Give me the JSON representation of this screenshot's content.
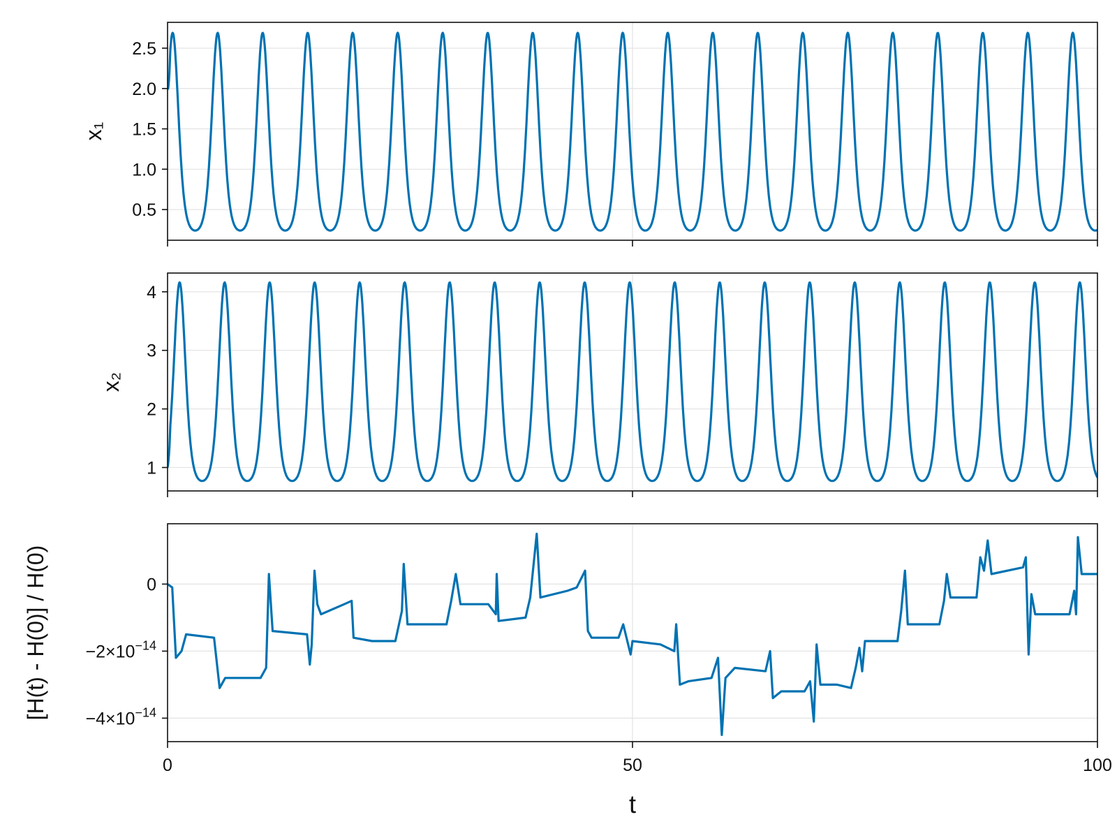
{
  "chart_data": [
    {
      "type": "line",
      "ylabel": "x₁",
      "xlim": [
        0,
        100
      ],
      "ylim": [
        0.12,
        2.82
      ],
      "grid": true,
      "xticks": [
        0,
        50,
        100
      ],
      "yticks": [
        0.5,
        1.0,
        1.5,
        2.0,
        2.5
      ],
      "ytick_labels": [
        "0.5",
        "1.0",
        "1.5",
        "2.0",
        "2.5"
      ],
      "series": [
        {
          "color": "#0072b2",
          "signal": {
            "kind": "periodic",
            "start_value": 2.0,
            "min": 0.24,
            "max": 2.69,
            "period": 4.84,
            "first_peak_t": 0.55
          }
        }
      ]
    },
    {
      "type": "line",
      "ylabel": "x₂",
      "xlim": [
        0,
        100
      ],
      "ylim": [
        0.6,
        4.32
      ],
      "grid": true,
      "xticks": [
        0,
        50,
        100
      ],
      "yticks": [
        1,
        2,
        3,
        4
      ],
      "ytick_labels": [
        "1",
        "2",
        "3",
        "4"
      ],
      "series": [
        {
          "color": "#0072b2",
          "signal": {
            "kind": "periodic",
            "start_value": 1.0,
            "min": 0.77,
            "max": 4.16,
            "period": 4.84,
            "first_peak_t": 1.3
          }
        }
      ]
    },
    {
      "type": "line",
      "ylabel": "[H(t) - H(0)] / H(0)",
      "xlabel": "t",
      "xlim": [
        0,
        100
      ],
      "ylim": [
        -4.7e-14,
        1.8e-14
      ],
      "grid": true,
      "xticks": [
        0,
        50,
        100
      ],
      "xtick_labels": [
        "0",
        "50",
        "100"
      ],
      "yticks": [
        -4e-14,
        -2e-14,
        0
      ],
      "ytick_labels": [
        {
          "mant": "−4×10",
          "exp": "−14"
        },
        {
          "mant": "−2×10",
          "exp": "−14"
        },
        {
          "mant": "0",
          "exp": ""
        }
      ],
      "series": [
        {
          "color": "#0072b2",
          "points": [
            [
              0,
              0
            ],
            [
              0.5,
              -0.1
            ],
            [
              0.9,
              -2.2
            ],
            [
              1.5,
              -2.0
            ],
            [
              2.0,
              -1.5
            ],
            [
              5.0,
              -1.6
            ],
            [
              5.6,
              -3.1
            ],
            [
              6.2,
              -2.8
            ],
            [
              10.0,
              -2.8
            ],
            [
              10.6,
              -2.5
            ],
            [
              10.9,
              0.3
            ],
            [
              11.3,
              -1.4
            ],
            [
              15.0,
              -1.5
            ],
            [
              15.3,
              -2.4
            ],
            [
              15.5,
              -1.8
            ],
            [
              15.8,
              0.4
            ],
            [
              16.1,
              -0.6
            ],
            [
              16.5,
              -0.9
            ],
            [
              19.0,
              -0.6
            ],
            [
              19.8,
              -0.5
            ],
            [
              20.0,
              -1.6
            ],
            [
              22.0,
              -1.7
            ],
            [
              24.5,
              -1.7
            ],
            [
              25.2,
              -0.8
            ],
            [
              25.4,
              0.6
            ],
            [
              25.8,
              -1.2
            ],
            [
              30.0,
              -1.2
            ],
            [
              30.5,
              -0.5
            ],
            [
              31.0,
              0.3
            ],
            [
              31.5,
              -0.6
            ],
            [
              34.5,
              -0.6
            ],
            [
              35.3,
              -0.9
            ],
            [
              35.4,
              0.3
            ],
            [
              35.6,
              -1.1
            ],
            [
              38.5,
              -1.0
            ],
            [
              39.0,
              -0.4
            ],
            [
              39.7,
              1.5
            ],
            [
              40.1,
              -0.4
            ],
            [
              43.0,
              -0.2
            ],
            [
              44.0,
              -0.1
            ],
            [
              44.9,
              0.4
            ],
            [
              45.2,
              -1.4
            ],
            [
              45.6,
              -1.6
            ],
            [
              48.5,
              -1.6
            ],
            [
              49.0,
              -1.2
            ],
            [
              49.8,
              -2.1
            ],
            [
              50.0,
              -1.7
            ],
            [
              53.0,
              -1.8
            ],
            [
              54.5,
              -2.0
            ],
            [
              54.7,
              -1.2
            ],
            [
              55.1,
              -3.0
            ],
            [
              56.0,
              -2.9
            ],
            [
              58.5,
              -2.8
            ],
            [
              59.2,
              -2.2
            ],
            [
              59.6,
              -4.5
            ],
            [
              60.0,
              -2.8
            ],
            [
              61.0,
              -2.5
            ],
            [
              64.3,
              -2.6
            ],
            [
              64.8,
              -2.0
            ],
            [
              65.1,
              -3.4
            ],
            [
              66.0,
              -3.2
            ],
            [
              68.5,
              -3.2
            ],
            [
              69.1,
              -2.9
            ],
            [
              69.5,
              -4.1
            ],
            [
              69.8,
              -1.8
            ],
            [
              70.2,
              -3.0
            ],
            [
              72.0,
              -3.0
            ],
            [
              73.5,
              -3.1
            ],
            [
              74.0,
              -2.5
            ],
            [
              74.4,
              -1.9
            ],
            [
              74.7,
              -2.6
            ],
            [
              75.0,
              -1.7
            ],
            [
              78.5,
              -1.7
            ],
            [
              78.9,
              -0.8
            ],
            [
              79.3,
              0.4
            ],
            [
              79.6,
              -1.2
            ],
            [
              83.0,
              -1.2
            ],
            [
              83.5,
              -0.5
            ],
            [
              83.8,
              0.3
            ],
            [
              84.2,
              -0.4
            ],
            [
              87.0,
              -0.4
            ],
            [
              87.4,
              0.8
            ],
            [
              87.8,
              0.4
            ],
            [
              88.2,
              1.3
            ],
            [
              88.6,
              0.3
            ],
            [
              92.0,
              0.5
            ],
            [
              92.3,
              0.8
            ],
            [
              92.6,
              -2.1
            ],
            [
              92.9,
              -0.3
            ],
            [
              93.3,
              -0.9
            ],
            [
              97.0,
              -0.9
            ],
            [
              97.5,
              -0.2
            ],
            [
              97.7,
              -0.9
            ],
            [
              97.9,
              1.4
            ],
            [
              98.3,
              0.3
            ],
            [
              100,
              0.3
            ]
          ],
          "y_scale": 1e-14
        }
      ]
    }
  ]
}
